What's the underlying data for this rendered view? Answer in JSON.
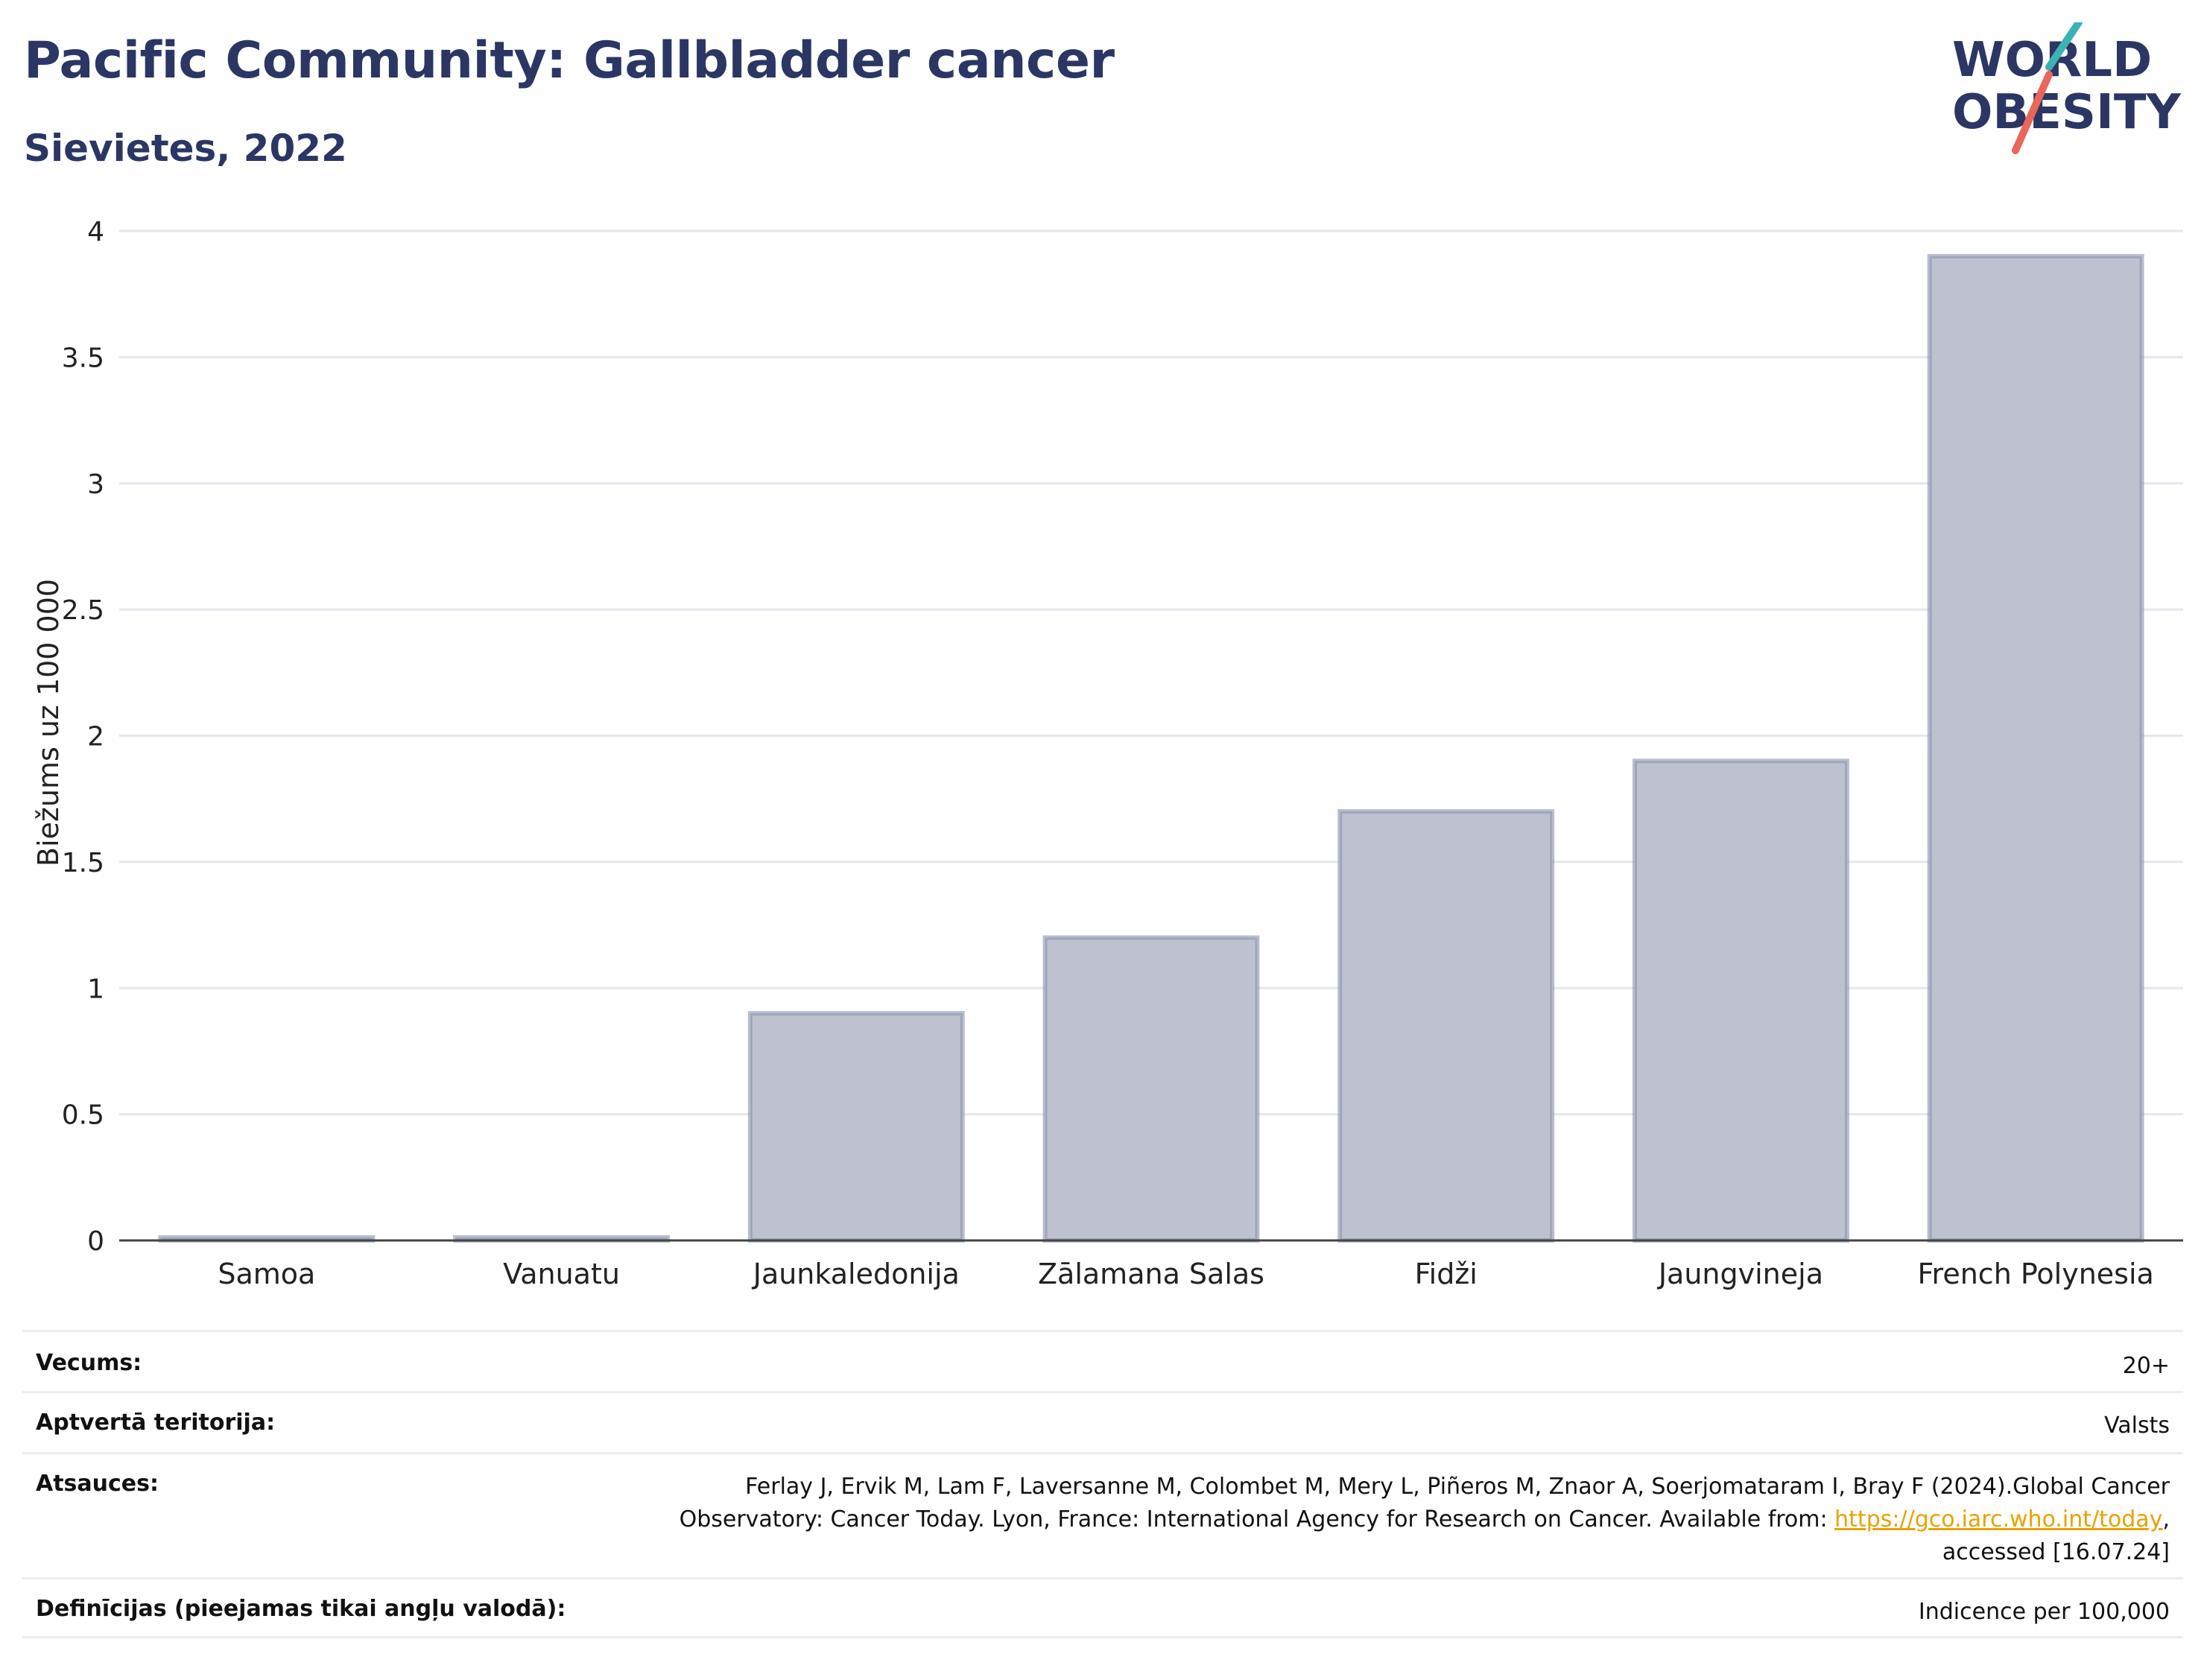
{
  "title": "Pacific Community: Gallbladder cancer",
  "subtitle": "Sievietes, 2022",
  "logo": {
    "line1": "WORLD",
    "line2": "OBESITY",
    "colors": {
      "text": "#2b3664",
      "slash_red": "#e8675a",
      "slash_teal": "#3bb3b5"
    }
  },
  "chart_data": {
    "type": "bar",
    "categories": [
      "Samoa",
      "Vanuatu",
      "Jaunkaledonija",
      "Zālamana Salas",
      "Fidži",
      "Jaungvineja",
      "French Polynesia"
    ],
    "values": [
      0,
      0,
      0.9,
      1.2,
      1.7,
      1.9,
      3.9
    ],
    "ylabel": "Biežums uz 100 000",
    "xlabel": "",
    "ylim": [
      0,
      4
    ],
    "yticks": [
      "0",
      "0.5",
      "1",
      "1.5",
      "2",
      "2.5",
      "3",
      "3.5",
      "4"
    ],
    "grid": true,
    "colors": {
      "bar_fill": "#bec2d0",
      "bar_stroke": "#8b92ad",
      "grid": "#e6e6ee",
      "axis": "#444444"
    }
  },
  "meta": {
    "age_label": "Vecums:",
    "age_value": "20+",
    "coverage_label": "Aptvertā teritorija:",
    "coverage_value": "Valsts",
    "refs_label": "Atsauces:",
    "refs_text_1": "Ferlay J, Ervik M, Lam F, Laversanne M, Colombet M, Mery L, Piñeros M, Znaor A, Soerjomataram I, Bray F (2024).Global Cancer Observatory: Cancer Today. Lyon, France: International Agency for Research on Cancer. Available from: ",
    "refs_link": "https://gco.iarc.who.int/today",
    "refs_text_2": ", accessed [16.07.24]",
    "defs_label": "Definīcijas (pieejamas tikai angļu valodā):",
    "defs_value": "Indicence per 100,000"
  }
}
